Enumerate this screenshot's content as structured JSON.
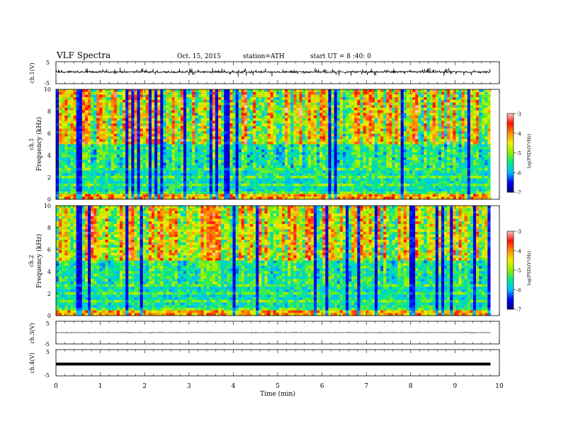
{
  "header": {
    "title": "VLF Spectra",
    "date": "Oct. 15, 2015",
    "station": "station=ATH",
    "start_ut": "start UT = 8 :40: 0"
  },
  "chart_data": [
    {
      "type": "line",
      "name": "ch1-waveform",
      "ylabel": "ch.1(V)",
      "yticks": [
        "5",
        "-5"
      ],
      "ylim": [
        -5,
        5
      ],
      "xlim": [
        0,
        10
      ],
      "data_end_min": 9.8,
      "baseline_v": 0.3,
      "amplitude_v": 1.3
    },
    {
      "type": "heatmap",
      "name": "ch1-spectrogram",
      "ylabel_top": "ch.1",
      "ylabel": "Frequency (kHz)",
      "yticks": [
        "0",
        "2",
        "4",
        "6",
        "8",
        "10"
      ],
      "ylim": [
        0,
        10
      ],
      "xlim": [
        0,
        10
      ],
      "data_end_min": 9.8,
      "colorbar": {
        "label": "log(PSD)(V²/Hz)",
        "ticks": [
          "-3",
          "-4",
          "-5",
          "-6",
          "-7"
        ],
        "range": [
          -7,
          -3
        ],
        "colors": [
          "#000080",
          "#0000ff",
          "#00c0ff",
          "#00e890",
          "#90f000",
          "#f0f000",
          "#ff9000",
          "#ff1000",
          "#ffc8c8"
        ]
      }
    },
    {
      "type": "heatmap",
      "name": "ch2-spectrogram",
      "ylabel_top": "ch.2",
      "ylabel": "Frequency (kHz)",
      "yticks": [
        "0",
        "2",
        "4",
        "6",
        "8",
        "10"
      ],
      "ylim": [
        0,
        10
      ],
      "xlim": [
        0,
        10
      ],
      "data_end_min": 9.8,
      "colorbar": {
        "label": "log(PSD)(V²/Hz)",
        "ticks": [
          "-3",
          "-4",
          "-5",
          "-6",
          "-7"
        ],
        "range": [
          -7,
          -3
        ],
        "colors": [
          "#000080",
          "#0000ff",
          "#00c0ff",
          "#00e890",
          "#90f000",
          "#f0f000",
          "#ff9000",
          "#ff1000",
          "#ffc8c8"
        ]
      }
    },
    {
      "type": "line",
      "name": "ch3-waveform",
      "ylabel": "ch.3(V)",
      "yticks": [
        "5",
        "-5"
      ],
      "ylim": [
        -5,
        5
      ],
      "xlim": [
        0,
        10
      ],
      "data_end_min": 9.8,
      "baseline_v": 0.0,
      "amplitude_v": 0.15
    },
    {
      "type": "line",
      "name": "ch4-waveform",
      "ylabel": "ch.4(V)",
      "yticks": [
        "5",
        "-5"
      ],
      "ylim": [
        -5,
        5
      ],
      "xlim": [
        0,
        10
      ],
      "data_end_min": 9.8,
      "baseline_v": -0.5,
      "amplitude_v": 0.0
    }
  ],
  "x_axis": {
    "label": "Time (min)",
    "ticks": [
      "0",
      "1",
      "2",
      "3",
      "4",
      "5",
      "6",
      "7",
      "8",
      "9",
      "10"
    ]
  }
}
